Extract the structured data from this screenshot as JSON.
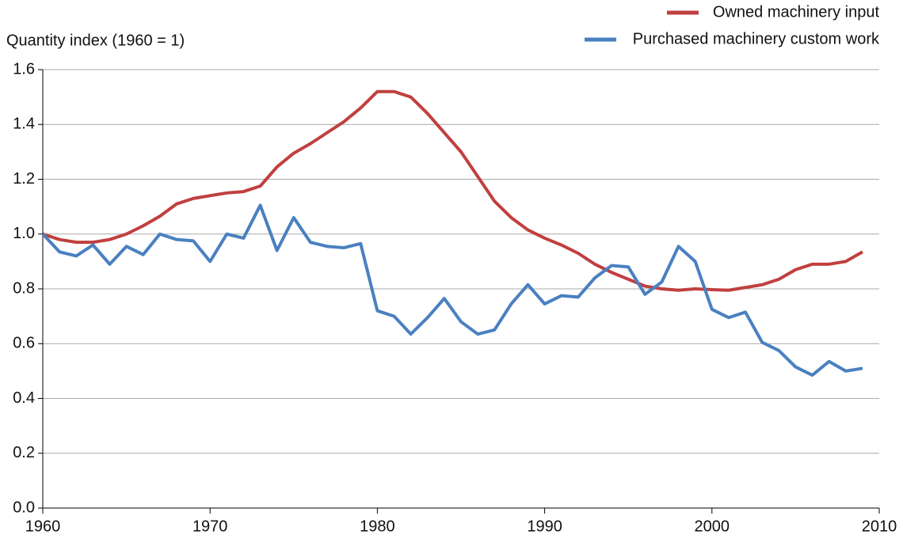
{
  "chart_data": {
    "type": "line",
    "y_axis_label": "Quantity index (1960 = 1)",
    "x": [
      1960,
      1961,
      1962,
      1963,
      1964,
      1965,
      1966,
      1967,
      1968,
      1969,
      1970,
      1971,
      1972,
      1973,
      1974,
      1975,
      1976,
      1977,
      1978,
      1979,
      1980,
      1981,
      1982,
      1983,
      1984,
      1985,
      1986,
      1987,
      1988,
      1989,
      1990,
      1991,
      1992,
      1993,
      1994,
      1995,
      1996,
      1997,
      1998,
      1999,
      2000,
      2001,
      2002,
      2003,
      2004,
      2005,
      2006,
      2007,
      2008,
      2009
    ],
    "series": [
      {
        "name": "Owned machinery input",
        "color": "#c0403f",
        "values": [
          1.0,
          0.98,
          0.97,
          0.97,
          0.98,
          1.0,
          1.03,
          1.065,
          1.11,
          1.13,
          1.14,
          1.15,
          1.155,
          1.175,
          1.245,
          1.295,
          1.33,
          1.37,
          1.41,
          1.46,
          1.52,
          1.52,
          1.5,
          1.44,
          1.37,
          1.3,
          1.21,
          1.12,
          1.06,
          1.015,
          0.985,
          0.96,
          0.93,
          0.89,
          0.86,
          0.835,
          0.81,
          0.8,
          0.795,
          0.8,
          0.797,
          0.795,
          0.805,
          0.815,
          0.835,
          0.87,
          0.89,
          0.89,
          0.9,
          0.935
        ]
      },
      {
        "name": "Purchased machinery custom work",
        "color": "#4a80c0",
        "values": [
          1.0,
          0.935,
          0.92,
          0.96,
          0.89,
          0.955,
          0.925,
          1.0,
          0.98,
          0.975,
          0.9,
          1.0,
          0.985,
          1.105,
          0.94,
          1.06,
          0.97,
          0.955,
          0.95,
          0.965,
          0.72,
          0.7,
          0.635,
          0.695,
          0.765,
          0.68,
          0.635,
          0.65,
          0.745,
          0.815,
          0.745,
          0.775,
          0.77,
          0.84,
          0.885,
          0.88,
          0.78,
          0.825,
          0.955,
          0.9,
          0.725,
          0.695,
          0.715,
          0.605,
          0.575,
          0.515,
          0.485,
          0.535,
          0.5,
          0.51
        ]
      }
    ],
    "xlim": [
      1960,
      2010
    ],
    "xticks": [
      1960,
      1970,
      1980,
      1990,
      2000,
      2010
    ],
    "ylim": [
      0,
      1.6
    ],
    "yticks": [
      {
        "value": 0,
        "label": "0.0"
      },
      0.2,
      0.4,
      0.6,
      0.8,
      {
        "value": 1,
        "label": "1.0"
      },
      1.2,
      1.4,
      1.6
    ],
    "grid": true,
    "legend": "top-right"
  }
}
